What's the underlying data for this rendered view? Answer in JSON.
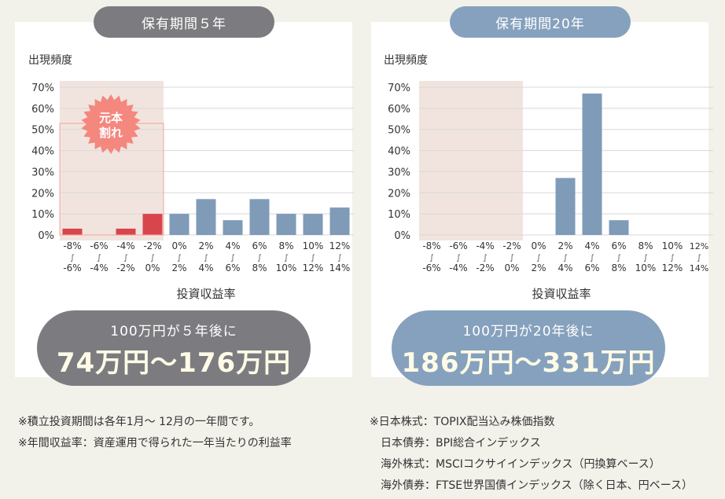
{
  "charts": [
    {
      "pill_label": "保有期間５年",
      "ylabel": "出現頻度",
      "xlabel": "投資収益率",
      "summary_line1": "100万円が５年後に",
      "summary_line2": "74万円〜176万円",
      "badge_text_1": "元本",
      "badge_text_2": "割れ"
    },
    {
      "pill_label": "保有期間20年",
      "ylabel": "出現頻度",
      "xlabel": "投資収益率",
      "summary_line1": "100万円が20年後に",
      "summary_line2": "186万円〜331万円"
    }
  ],
  "chart_data": [
    {
      "type": "bar",
      "categories": [
        [
          "-8%",
          "-6%"
        ],
        [
          "-6%",
          "-4%"
        ],
        [
          "-4%",
          "-2%"
        ],
        [
          "-2%",
          "0%"
        ],
        [
          "0%",
          "2%"
        ],
        [
          "2%",
          "4%"
        ],
        [
          "4%",
          "6%"
        ],
        [
          "6%",
          "8%"
        ],
        [
          "8%",
          "10%"
        ],
        [
          "10%",
          "12%"
        ],
        [
          "12%",
          "14%"
        ]
      ],
      "values": [
        3,
        0,
        3,
        10,
        10,
        17,
        7,
        17,
        10,
        10,
        13
      ],
      "yticks": [
        "70%",
        "60%",
        "50%",
        "40%",
        "30%",
        "20%",
        "10%",
        "0%"
      ],
      "ylim": [
        0,
        70
      ],
      "colors": {
        "loss": "#d9454d",
        "gain": "#7f9bb8",
        "loss_zone": "#f1e4df"
      }
    },
    {
      "type": "bar",
      "categories": [
        [
          "-8%",
          "-6%"
        ],
        [
          "-6%",
          "-4%"
        ],
        [
          "-4%",
          "-2%"
        ],
        [
          "-2%",
          "0%"
        ],
        [
          "0%",
          "2%"
        ],
        [
          "2%",
          "4%"
        ],
        [
          "4%",
          "6%"
        ],
        [
          "6%",
          "8%"
        ],
        [
          "8%",
          "10%"
        ],
        [
          "10%",
          "12%"
        ],
        [
          "12%",
          "14%"
        ]
      ],
      "values": [
        0,
        0,
        0,
        0,
        0,
        27,
        67,
        7,
        0,
        0,
        0
      ],
      "yticks": [
        "70%",
        "60%",
        "50%",
        "40%",
        "30%",
        "20%",
        "10%",
        "0%"
      ],
      "ylim": [
        0,
        70
      ],
      "colors": {
        "loss": "#d9454d",
        "gain": "#7f9bb8",
        "loss_zone": "#f1e4df"
      }
    }
  ],
  "notes_left": [
    "※積立投資期間は各年1月〜 12月の一年間です。",
    "※年間収益率：資産運用で得られた一年当たりの利益率"
  ],
  "notes_right": [
    "※日本株式：TOPIX配当込み株価指数",
    "日本債券：BPI総合インデックス",
    "海外株式：MSCIコクサイインデックス（円換算ベース）",
    "海外債券：FTSE世界国債インデックス（除く日本、円ベース）"
  ]
}
